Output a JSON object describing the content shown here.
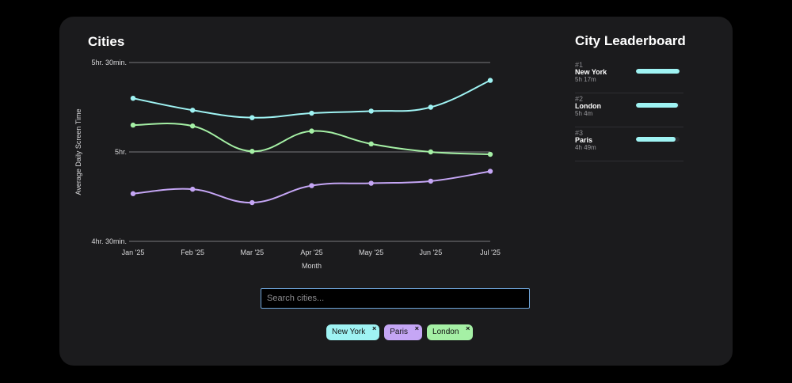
{
  "chart_data": {
    "type": "line",
    "title": "Cities",
    "xlabel": "Month",
    "ylabel": "Average Daily Screen Time",
    "categories": [
      "Jan '25",
      "Feb '25",
      "Mar '25",
      "Apr '25",
      "May '25",
      "Jun '25",
      "Jul '25"
    ],
    "y_ticks": [
      270,
      300,
      330
    ],
    "y_tick_labels": [
      "4hr. 30min.",
      "5hr.",
      "5hr. 30min."
    ],
    "ylim": [
      270,
      330
    ],
    "grid": true,
    "series": [
      {
        "name": "New York",
        "color": "#9ff3f3",
        "values": [
          318,
          314,
          311.5,
          313,
          313.7,
          315,
          324
        ]
      },
      {
        "name": "London",
        "color": "#a5f0a5",
        "values": [
          309,
          308.7,
          300.2,
          307,
          302.7,
          300,
          299.2
        ]
      },
      {
        "name": "Paris",
        "color": "#c5a6f5",
        "values": [
          286,
          287.5,
          283,
          288.7,
          289.5,
          290.2,
          293.5
        ]
      }
    ]
  },
  "leaderboard": {
    "title": "City Leaderboard",
    "entries": [
      {
        "rank": "#1",
        "name": "New York",
        "time": "5h 17m",
        "share": 1.0
      },
      {
        "rank": "#2",
        "name": "London",
        "time": "5h 4m",
        "share": 0.96
      },
      {
        "rank": "#3",
        "name": "Paris",
        "time": "4h 49m",
        "share": 0.91
      }
    ]
  },
  "search": {
    "placeholder": "Search cities..."
  },
  "tags": [
    {
      "label": "New York",
      "color": "#9ff3f3",
      "close": "×"
    },
    {
      "label": "Paris",
      "color": "#c5a6f5",
      "close": "×"
    },
    {
      "label": "London",
      "color": "#a5f0a5",
      "close": "×"
    }
  ]
}
